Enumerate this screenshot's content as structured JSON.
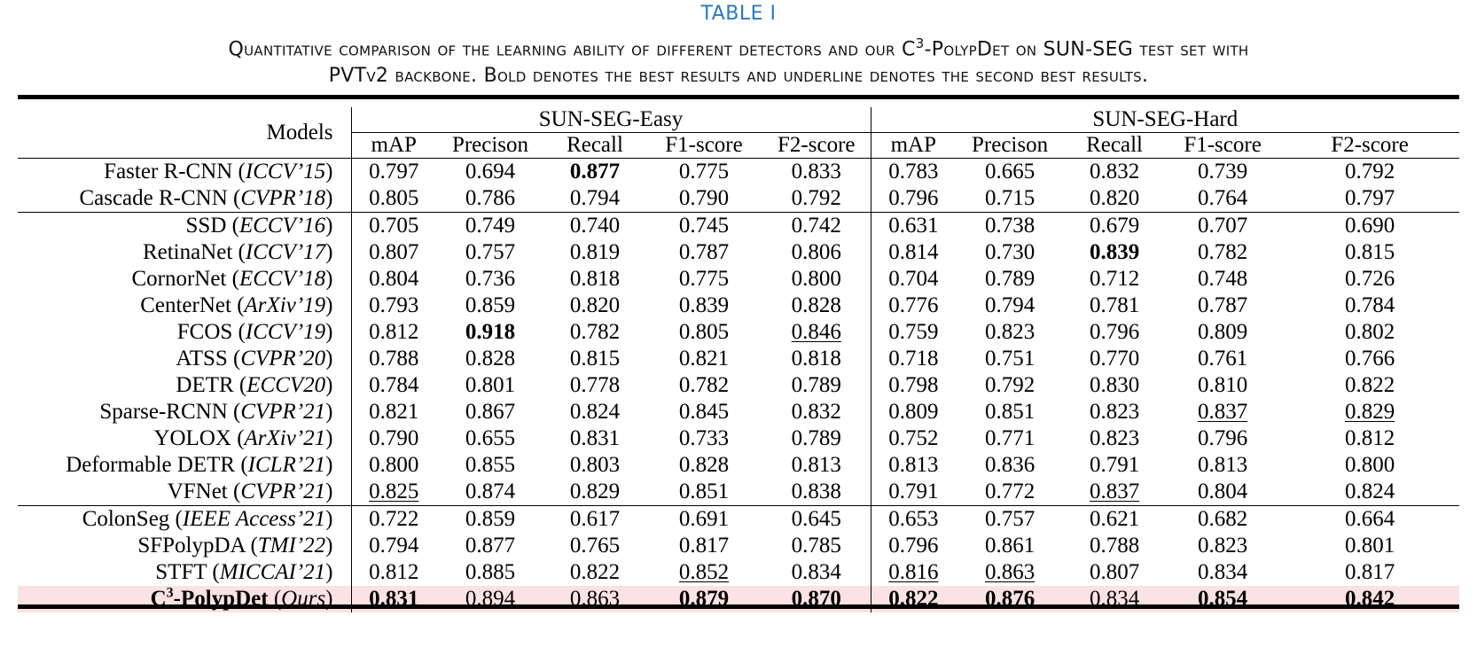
{
  "caption": {
    "label": "TABLE I",
    "line1_pre": "Quantitative comparison of the learning ability of different detectors and our C",
    "line1_sup": "3",
    "line1_post": "-PolypDet on SUN-SEG test set with",
    "line2": "PVTv2 backbone. Bold denotes the best results and underline denotes the second best results."
  },
  "table": {
    "models_header": "Models",
    "group_headers": [
      "SUN-SEG-Easy",
      "SUN-SEG-Hard"
    ],
    "metric_headers": [
      "mAP",
      "Precison",
      "Recall",
      "F1-score",
      "F2-score",
      "mAP",
      "Precison",
      "Recall",
      "F1-score",
      "F2-score"
    ],
    "groups": [
      {
        "rows": [
          {
            "name": "Faster R-CNN (",
            "venue": "ICCV’15",
            "close": ")",
            "values": [
              "0.797",
              "0.694",
              "0.877",
              "0.775",
              "0.833",
              "0.783",
              "0.665",
              "0.832",
              "0.739",
              "0.792"
            ],
            "best": [
              2
            ],
            "second": []
          },
          {
            "name": "Cascade R-CNN (",
            "venue": "CVPR’18",
            "close": ")",
            "values": [
              "0.805",
              "0.786",
              "0.794",
              "0.790",
              "0.792",
              "0.796",
              "0.715",
              "0.820",
              "0.764",
              "0.797"
            ],
            "best": [],
            "second": []
          }
        ]
      },
      {
        "rows": [
          {
            "name": "SSD (",
            "venue": "ECCV’16",
            "close": ")",
            "values": [
              "0.705",
              "0.749",
              "0.740",
              "0.745",
              "0.742",
              "0.631",
              "0.738",
              "0.679",
              "0.707",
              "0.690"
            ],
            "best": [],
            "second": []
          },
          {
            "name": "RetinaNet (",
            "venue": "ICCV’17",
            "close": ")",
            "values": [
              "0.807",
              "0.757",
              "0.819",
              "0.787",
              "0.806",
              "0.814",
              "0.730",
              "0.839",
              "0.782",
              "0.815"
            ],
            "best": [
              7
            ],
            "second": []
          },
          {
            "name": "CornorNet (",
            "venue": "ECCV’18",
            "close": ")",
            "values": [
              "0.804",
              "0.736",
              "0.818",
              "0.775",
              "0.800",
              "0.704",
              "0.789",
              "0.712",
              "0.748",
              "0.726"
            ],
            "best": [],
            "second": []
          },
          {
            "name": "CenterNet (",
            "venue": "ArXiv’19",
            "close": ")",
            "values": [
              "0.793",
              "0.859",
              "0.820",
              "0.839",
              "0.828",
              "0.776",
              "0.794",
              "0.781",
              "0.787",
              "0.784"
            ],
            "best": [],
            "second": []
          },
          {
            "name": "FCOS (",
            "venue": "ICCV’19",
            "close": ")",
            "values": [
              "0.812",
              "0.918",
              "0.782",
              "0.805",
              "0.846",
              "0.759",
              "0.823",
              "0.796",
              "0.809",
              "0.802"
            ],
            "best": [
              1
            ],
            "second": [
              4
            ]
          },
          {
            "name": "ATSS (",
            "venue": "CVPR’20",
            "close": ")",
            "values": [
              "0.788",
              "0.828",
              "0.815",
              "0.821",
              "0.818",
              "0.718",
              "0.751",
              "0.770",
              "0.761",
              "0.766"
            ],
            "best": [],
            "second": []
          },
          {
            "name": "DETR (",
            "venue": "ECCV20",
            "close": ")",
            "values": [
              "0.784",
              "0.801",
              "0.778",
              "0.782",
              "0.789",
              "0.798",
              "0.792",
              "0.830",
              "0.810",
              "0.822"
            ],
            "best": [],
            "second": []
          },
          {
            "name": "Sparse-RCNN (",
            "venue": "CVPR’21",
            "close": ")",
            "values": [
              "0.821",
              "0.867",
              "0.824",
              "0.845",
              "0.832",
              "0.809",
              "0.851",
              "0.823",
              "0.837",
              "0.829"
            ],
            "best": [],
            "second": [
              8,
              9
            ]
          },
          {
            "name": "YOLOX (",
            "venue": "ArXiv’21",
            "close": ")",
            "values": [
              "0.790",
              "0.655",
              "0.831",
              "0.733",
              "0.789",
              "0.752",
              "0.771",
              "0.823",
              "0.796",
              "0.812"
            ],
            "best": [],
            "second": []
          },
          {
            "name": "Deformable DETR (",
            "venue": "ICLR’21",
            "close": ")",
            "values": [
              "0.800",
              "0.855",
              "0.803",
              "0.828",
              "0.813",
              "0.813",
              "0.836",
              "0.791",
              "0.813",
              "0.800"
            ],
            "best": [],
            "second": []
          },
          {
            "name": "VFNet (",
            "venue": "CVPR’21",
            "close": ")",
            "values": [
              "0.825",
              "0.874",
              "0.829",
              "0.851",
              "0.838",
              "0.791",
              "0.772",
              "0.837",
              "0.804",
              "0.824"
            ],
            "best": [],
            "second": [
              0,
              7
            ]
          }
        ]
      },
      {
        "rows": [
          {
            "name": "ColonSeg (",
            "venue": "IEEE Access’21",
            "close": ")",
            "values": [
              "0.722",
              "0.859",
              "0.617",
              "0.691",
              "0.645",
              "0.653",
              "0.757",
              "0.621",
              "0.682",
              "0.664"
            ],
            "best": [],
            "second": []
          },
          {
            "name": "SFPolypDA (",
            "venue": "TMI’22",
            "close": ")",
            "values": [
              "0.794",
              "0.877",
              "0.765",
              "0.817",
              "0.785",
              "0.796",
              "0.861",
              "0.788",
              "0.823",
              "0.801"
            ],
            "best": [],
            "second": []
          },
          {
            "name": "STFT (",
            "venue": "MICCAI’21",
            "close": ")",
            "values": [
              "0.812",
              "0.885",
              "0.822",
              "0.852",
              "0.834",
              "0.816",
              "0.863",
              "0.807",
              "0.834",
              "0.817"
            ],
            "best": [],
            "second": [
              3,
              5,
              6
            ]
          },
          {
            "name": "C",
            "sup": "3",
            "name_post": "-PolypDet",
            "open": " (",
            "venue": "Ours",
            "close": ")",
            "ours": true,
            "values": [
              "0.831",
              "0.894",
              "0.863",
              "0.879",
              "0.870",
              "0.822",
              "0.876",
              "0.834",
              "0.854",
              "0.842"
            ],
            "best": [
              0,
              3,
              4,
              5,
              6,
              8,
              9
            ],
            "second": [
              1,
              2
            ]
          }
        ]
      }
    ]
  },
  "colors": {
    "caption_label": "#2a7ac0",
    "ours_highlight": "#fbe2e5"
  }
}
